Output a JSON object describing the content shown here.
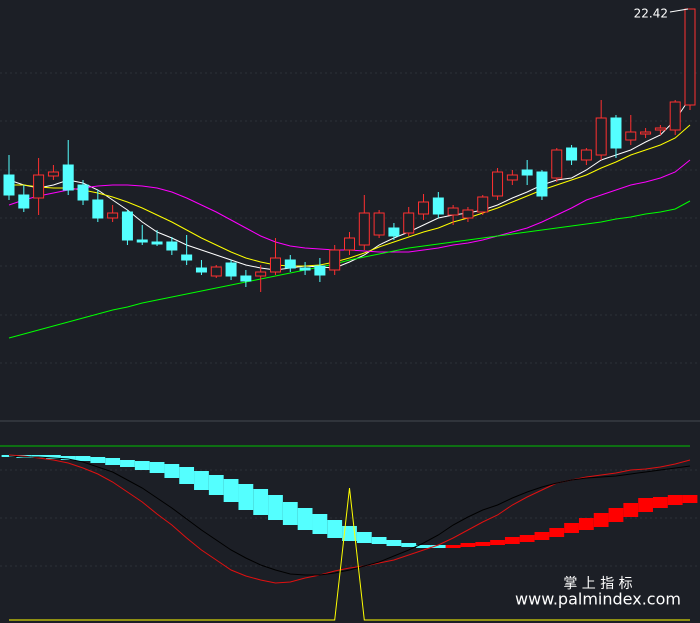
{
  "chart_data": [
    {
      "type": "candlestick",
      "ylim": [
        14.2,
        22.6
      ],
      "up_color": "#ff3030",
      "down_color": "#54ffff",
      "annotation": "22.42",
      "open": [
        19.1,
        18.7,
        18.64,
        19.08,
        19.3,
        18.9,
        18.6,
        18.24,
        18.36,
        17.8,
        17.76,
        17.76,
        17.5,
        17.24,
        17.08,
        17.34,
        17.08,
        17.08,
        17.16,
        17.4,
        17.24,
        17.28,
        17.2,
        17.6,
        17.7,
        17.9,
        18.04,
        17.94,
        18.32,
        18.64,
        18.3,
        18.24,
        18.36,
        18.68,
        19.0,
        19.2,
        19.16,
        19.04,
        19.64,
        19.4,
        19.5,
        20.24,
        19.8,
        19.92,
        20.0,
        20.0,
        20.5
      ],
      "close": [
        18.7,
        18.44,
        19.1,
        19.16,
        18.8,
        18.6,
        18.24,
        18.34,
        17.8,
        17.76,
        17.72,
        17.6,
        17.4,
        17.16,
        17.26,
        17.08,
        16.98,
        17.16,
        17.44,
        17.24,
        17.2,
        17.1,
        17.6,
        17.84,
        18.34,
        18.34,
        17.88,
        18.34,
        18.56,
        18.32,
        18.44,
        18.4,
        18.66,
        19.16,
        19.1,
        19.1,
        18.68,
        19.6,
        19.4,
        19.6,
        20.24,
        19.64,
        19.96,
        19.96,
        20.04,
        20.56,
        22.42
      ],
      "high": [
        19.5,
        18.9,
        19.44,
        19.3,
        19.8,
        19.0,
        18.8,
        18.5,
        18.4,
        18.1,
        18.0,
        17.86,
        17.9,
        17.4,
        17.3,
        17.4,
        17.2,
        17.3,
        17.84,
        17.5,
        17.36,
        17.44,
        17.7,
        17.96,
        18.7,
        18.4,
        18.14,
        18.46,
        18.72,
        18.76,
        18.5,
        18.46,
        18.7,
        19.24,
        19.2,
        19.4,
        19.2,
        19.64,
        19.7,
        19.64,
        20.6,
        20.3,
        20.3,
        20.04,
        20.1,
        20.6,
        22.42
      ],
      "low": [
        18.6,
        18.36,
        18.3,
        19.0,
        18.7,
        18.5,
        18.16,
        18.16,
        17.7,
        17.7,
        17.68,
        17.5,
        17.3,
        17.1,
        17.04,
        17.0,
        16.86,
        16.76,
        17.1,
        17.16,
        17.1,
        16.96,
        17.1,
        17.5,
        17.6,
        17.84,
        17.8,
        17.88,
        18.2,
        18.24,
        18.1,
        18.16,
        18.3,
        18.6,
        18.9,
        18.9,
        18.6,
        18.96,
        19.3,
        19.3,
        19.4,
        19.44,
        19.7,
        19.84,
        19.9,
        19.9,
        20.4
      ],
      "lines": [
        {
          "color": "#ffffff",
          "values": [
            19.0,
            18.9,
            18.84,
            18.9,
            19.0,
            18.94,
            18.8,
            18.6,
            18.4,
            18.16,
            17.96,
            17.84,
            17.7,
            17.6,
            17.5,
            17.4,
            17.3,
            17.24,
            17.2,
            17.24,
            17.28,
            17.26,
            17.24,
            17.36,
            17.5,
            17.7,
            17.84,
            17.96,
            18.1,
            18.24,
            18.3,
            18.34,
            18.4,
            18.5,
            18.64,
            18.76,
            18.9,
            19.0,
            19.04,
            19.2,
            19.4,
            19.5,
            19.6,
            19.76,
            19.9,
            20.2,
            20.64
          ]
        },
        {
          "color": "#ffff00",
          "values": [
            18.9,
            18.9,
            18.86,
            18.84,
            18.84,
            18.8,
            18.74,
            18.66,
            18.56,
            18.44,
            18.3,
            18.16,
            18.0,
            17.84,
            17.7,
            17.56,
            17.44,
            17.36,
            17.3,
            17.28,
            17.28,
            17.3,
            17.36,
            17.44,
            17.54,
            17.66,
            17.76,
            17.86,
            17.96,
            18.04,
            18.16,
            18.24,
            18.34,
            18.44,
            18.56,
            18.68,
            18.8,
            18.9,
            19.0,
            19.1,
            19.24,
            19.36,
            19.5,
            19.6,
            19.7,
            19.84,
            20.1
          ]
        },
        {
          "color": "#ff00ff",
          "values": [
            18.5,
            18.6,
            18.68,
            18.74,
            18.8,
            18.84,
            18.88,
            18.9,
            18.9,
            18.88,
            18.84,
            18.76,
            18.64,
            18.5,
            18.36,
            18.2,
            18.04,
            17.88,
            17.76,
            17.68,
            17.64,
            17.62,
            17.6,
            17.6,
            17.58,
            17.56,
            17.56,
            17.56,
            17.6,
            17.64,
            17.7,
            17.74,
            17.8,
            17.88,
            17.96,
            18.04,
            18.16,
            18.3,
            18.44,
            18.6,
            18.7,
            18.8,
            18.9,
            18.96,
            19.04,
            19.16,
            19.4
          ]
        },
        {
          "color": "#00ff00",
          "values": [
            15.84,
            15.92,
            16.0,
            16.08,
            16.16,
            16.24,
            16.32,
            16.4,
            16.46,
            16.54,
            16.6,
            16.66,
            16.72,
            16.78,
            16.84,
            16.9,
            16.96,
            17.02,
            17.08,
            17.14,
            17.2,
            17.26,
            17.32,
            17.4,
            17.46,
            17.52,
            17.58,
            17.64,
            17.68,
            17.72,
            17.76,
            17.8,
            17.84,
            17.88,
            17.92,
            17.96,
            18.0,
            18.04,
            18.08,
            18.12,
            18.16,
            18.22,
            18.26,
            18.32,
            18.36,
            18.42,
            18.58
          ]
        }
      ]
    },
    {
      "type": "indicator",
      "ylim": [
        0,
        100
      ],
      "level": 87,
      "level_color": "#00c000",
      "band": {
        "upper": [
          82.5,
          82.5,
          82.5,
          82.5,
          82,
          82,
          81.5,
          81,
          80,
          79.5,
          79,
          78,
          76.5,
          74.5,
          72.5,
          70.5,
          68,
          65.5,
          62.5,
          59,
          56,
          53,
          50,
          47,
          44,
          41.5,
          40,
          38.5,
          37.5,
          37.5,
          37.5,
          38.5,
          39,
          40,
          41.5,
          42.5,
          44,
          46,
          48.5,
          51,
          53.5,
          56,
          58.5,
          61,
          61.5,
          62.5,
          62.5
        ],
        "lower": [
          81.5,
          81,
          81,
          80.5,
          80,
          79.5,
          78.5,
          77.5,
          76.5,
          75,
          73.5,
          71,
          68,
          65,
          62.5,
          59,
          55,
          52.5,
          50,
          47.5,
          45,
          43,
          41,
          39.5,
          38.5,
          38,
          37,
          36.5,
          36,
          36,
          36,
          36.5,
          37,
          37.5,
          38,
          39,
          40,
          41.5,
          43.5,
          45,
          46.5,
          49,
          51.5,
          54,
          56,
          57.5,
          58.5
        ],
        "colors": [
          "#54ffff",
          "#54ffff",
          "#54ffff",
          "#54ffff",
          "#54ffff",
          "#54ffff",
          "#54ffff",
          "#54ffff",
          "#54ffff",
          "#54ffff",
          "#54ffff",
          "#54ffff",
          "#54ffff",
          "#54ffff",
          "#54ffff",
          "#54ffff",
          "#54ffff",
          "#54ffff",
          "#54ffff",
          "#54ffff",
          "#54ffff",
          "#54ffff",
          "#54ffff",
          "#54ffff",
          "#54ffff",
          "#54ffff",
          "#54ffff",
          "#54ffff",
          "#54ffff",
          "#54ffff",
          "#ff0000",
          "#ff0000",
          "#ff0000",
          "#ff0000",
          "#ff0000",
          "#ff0000",
          "#ff0000",
          "#ff0000",
          "#ff0000",
          "#ff0000",
          "#ff0000",
          "#ff0000",
          "#ff0000",
          "#ff0000",
          "#ff0000",
          "#ff0000",
          "#ff0000"
        ]
      },
      "lines": [
        {
          "color": "#e01010",
          "values": [
            82.5,
            82,
            81,
            80,
            78.5,
            76,
            73,
            69,
            64,
            59,
            53,
            47.5,
            41,
            35,
            30,
            25,
            22,
            20,
            18.5,
            19,
            21,
            22.5,
            24.5,
            26,
            27,
            28.5,
            30,
            32.5,
            35,
            37.5,
            41,
            45,
            49,
            52.5,
            57.5,
            61.5,
            65,
            68.5,
            70,
            71.5,
            72.5,
            73.5,
            75,
            75.5,
            76.5,
            78,
            80
          ]
        },
        {
          "color": "#000000",
          "values": [
            82,
            81.5,
            81.5,
            81,
            80.5,
            79,
            76.5,
            74,
            70,
            66,
            61,
            56,
            50.5,
            45,
            40,
            35,
            31,
            27.5,
            25,
            23,
            22.5,
            22.5,
            23.5,
            25,
            27,
            29,
            32,
            35,
            38.5,
            42.5,
            47.5,
            51.5,
            55,
            57.5,
            61,
            64,
            66.5,
            68.5,
            70,
            71,
            71.5,
            72,
            73,
            74,
            75,
            76,
            77
          ]
        },
        {
          "color": "#ffff00",
          "values": [
            0,
            0,
            0,
            0,
            0,
            0,
            0,
            0,
            0,
            0,
            0,
            0,
            0,
            0,
            0,
            0,
            0,
            0,
            0,
            0,
            0,
            0,
            0,
            66,
            0,
            0,
            0,
            0,
            0,
            0,
            0,
            0,
            0,
            0,
            0,
            0,
            0,
            0,
            0,
            0,
            0,
            0,
            0,
            0,
            0,
            0,
            0
          ]
        }
      ]
    }
  ],
  "watermark": {
    "title": "掌 上 指 标",
    "url": "www.palmindex.com"
  }
}
